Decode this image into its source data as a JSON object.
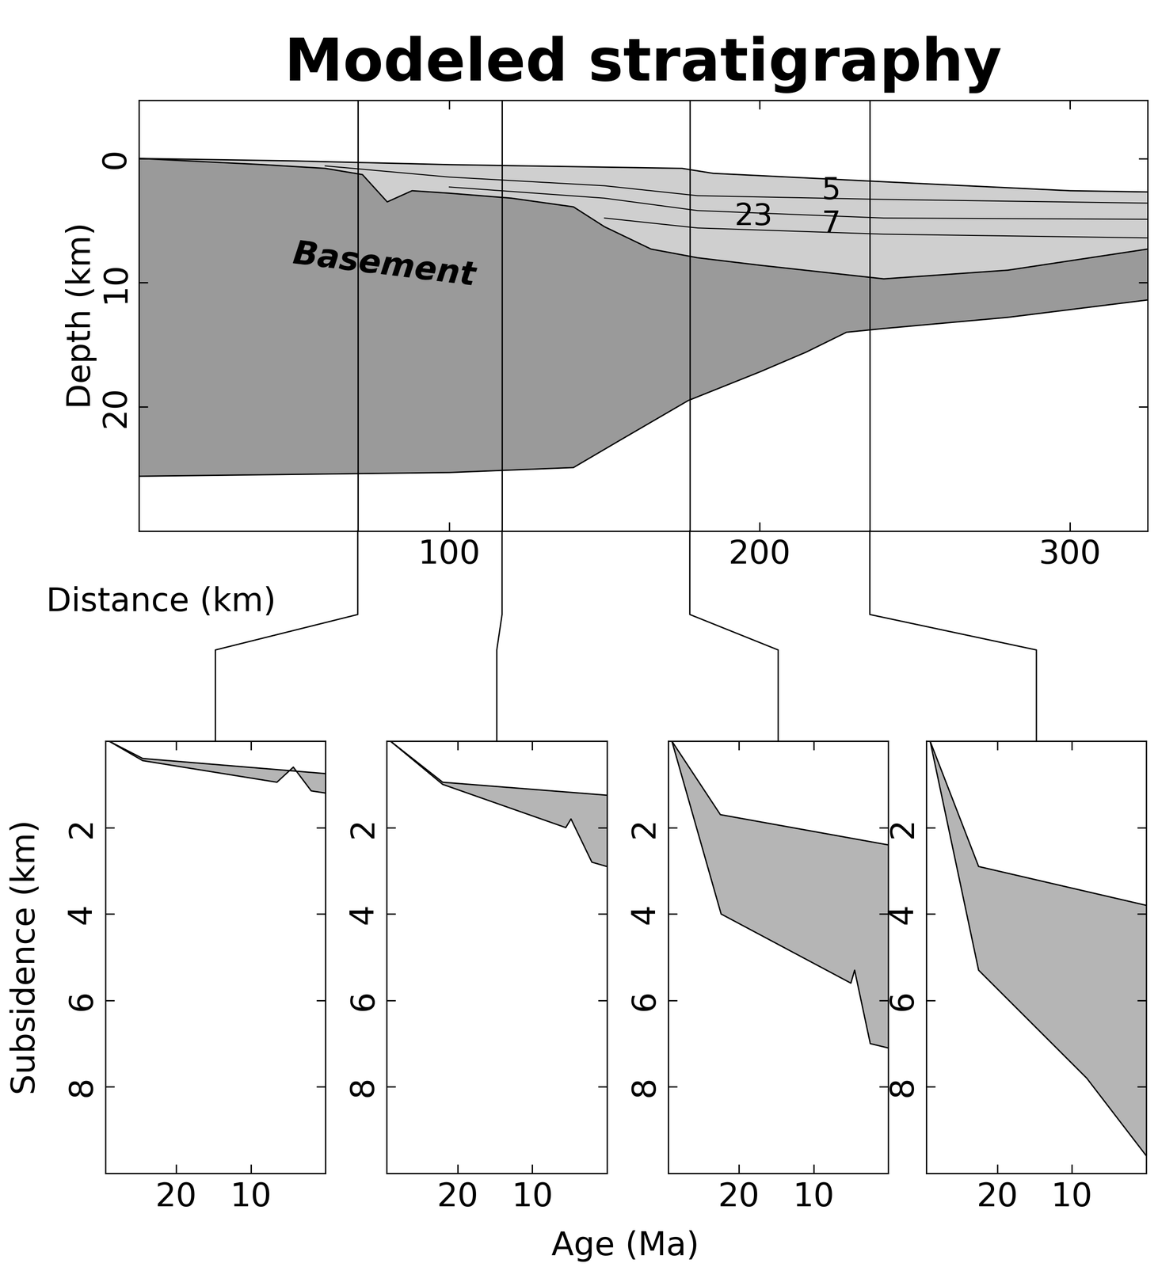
{
  "chart_data": [
    {
      "type": "area",
      "title": "Modeled stratigraphy",
      "xlabel": "Distance (km)",
      "ylabel": "Depth (km)",
      "xlim": [
        0,
        325
      ],
      "ylim": [
        30,
        -4.7
      ],
      "xticks": [
        100,
        200,
        300
      ],
      "yticks": [
        0,
        10,
        20
      ],
      "sediment_color": "#cfcfcf",
      "basement_color": "#9a9a9a",
      "seafloor": {
        "x": [
          0,
          50,
          100,
          150,
          175,
          185,
          250,
          300,
          325
        ],
        "values": [
          0,
          0.2,
          0.5,
          0.7,
          0.8,
          1.2,
          2.0,
          2.6,
          2.7
        ]
      },
      "basement_top": {
        "x": [
          0,
          40,
          60,
          72,
          80,
          88,
          100,
          120,
          140,
          150,
          165,
          180,
          200,
          240,
          280,
          325
        ],
        "values": [
          0,
          0.5,
          0.8,
          1.3,
          3.5,
          2.6,
          2.8,
          3.2,
          3.9,
          5.5,
          7.3,
          8.0,
          8.6,
          9.7,
          9.0,
          7.3
        ]
      },
      "basement_bottom": {
        "x": [
          0,
          100,
          140,
          155,
          177,
          200,
          215,
          228,
          240,
          280,
          325
        ],
        "values": [
          25.6,
          25.3,
          24.9,
          22.7,
          19.5,
          17.2,
          15.6,
          14.0,
          13.7,
          12.8,
          11.4
        ]
      },
      "horizons": [
        {
          "x": [
            60,
            100,
            150,
            180,
            240,
            325
          ],
          "values": [
            0.6,
            1.5,
            2.2,
            3.0,
            3.3,
            3.6
          ]
        },
        {
          "x": [
            100,
            150,
            180,
            240,
            325
          ],
          "values": [
            2.3,
            3.2,
            4.2,
            4.8,
            4.9
          ]
        },
        {
          "x": [
            150,
            180,
            240,
            325
          ],
          "values": [
            4.8,
            5.6,
            6.1,
            6.4
          ]
        }
      ],
      "wells": [
        70.5,
        117,
        177.5,
        235.5
      ],
      "annotations": [
        {
          "text": "Basement",
          "x": 79,
          "y": 8.6
        },
        {
          "text": "5",
          "x": 223,
          "y": 2.6
        },
        {
          "text": "23",
          "x": 198,
          "y": 4.7
        },
        {
          "text": "7",
          "x": 223,
          "y": 5.3
        }
      ]
    },
    {
      "type": "area",
      "xlim": [
        29.5,
        0
      ],
      "ylim": [
        10,
        0
      ],
      "xticks": [
        20,
        10
      ],
      "yticks": [
        2,
        4,
        6,
        8
      ],
      "color": "#b5b5b5",
      "series": [
        {
          "x": [
            29,
            24.5,
            0
          ],
          "values": [
            0,
            0.4,
            0.75
          ]
        },
        {
          "x": [
            29,
            24.5,
            6.5,
            4.3,
            1.9,
            0
          ],
          "values": [
            0,
            0.45,
            0.95,
            0.6,
            1.15,
            1.2
          ]
        }
      ]
    },
    {
      "type": "area",
      "xlim": [
        29.5,
        0
      ],
      "ylim": [
        10,
        0
      ],
      "xticks": [
        20,
        10
      ],
      "yticks": [
        2,
        4,
        6,
        8
      ],
      "color": "#b5b5b5",
      "series": [
        {
          "x": [
            29,
            22,
            0
          ],
          "values": [
            0,
            0.95,
            1.25
          ]
        },
        {
          "x": [
            29,
            22,
            5.5,
            4.8,
            2,
            0
          ],
          "values": [
            0,
            1.0,
            2.0,
            1.8,
            2.8,
            2.9
          ]
        }
      ]
    },
    {
      "type": "area",
      "xlim": [
        29.5,
        0
      ],
      "ylim": [
        10,
        0
      ],
      "xticks": [
        20,
        10
      ],
      "yticks": [
        2,
        4,
        6,
        8
      ],
      "color": "#b5b5b5",
      "series": [
        {
          "x": [
            29,
            22.5,
            0
          ],
          "values": [
            0,
            1.7,
            2.4
          ]
        },
        {
          "x": [
            29,
            22.4,
            5,
            4.5,
            2.4,
            0
          ],
          "values": [
            0,
            4.0,
            5.6,
            5.3,
            7.0,
            7.1
          ]
        }
      ]
    },
    {
      "type": "area",
      "xlim": [
        29.5,
        0
      ],
      "ylim": [
        10,
        0
      ],
      "xticks": [
        20,
        10
      ],
      "yticks": [
        2,
        4,
        6,
        8
      ],
      "color": "#b5b5b5",
      "series": [
        {
          "x": [
            29,
            22.5,
            0
          ],
          "values": [
            0,
            2.9,
            3.8
          ]
        },
        {
          "x": [
            29,
            22.5,
            8,
            0
          ],
          "values": [
            0,
            5.3,
            7.8,
            9.6
          ]
        }
      ]
    }
  ],
  "shared_labels": {
    "x": "Age (Ma)",
    "y": "Subsidence (km)"
  }
}
